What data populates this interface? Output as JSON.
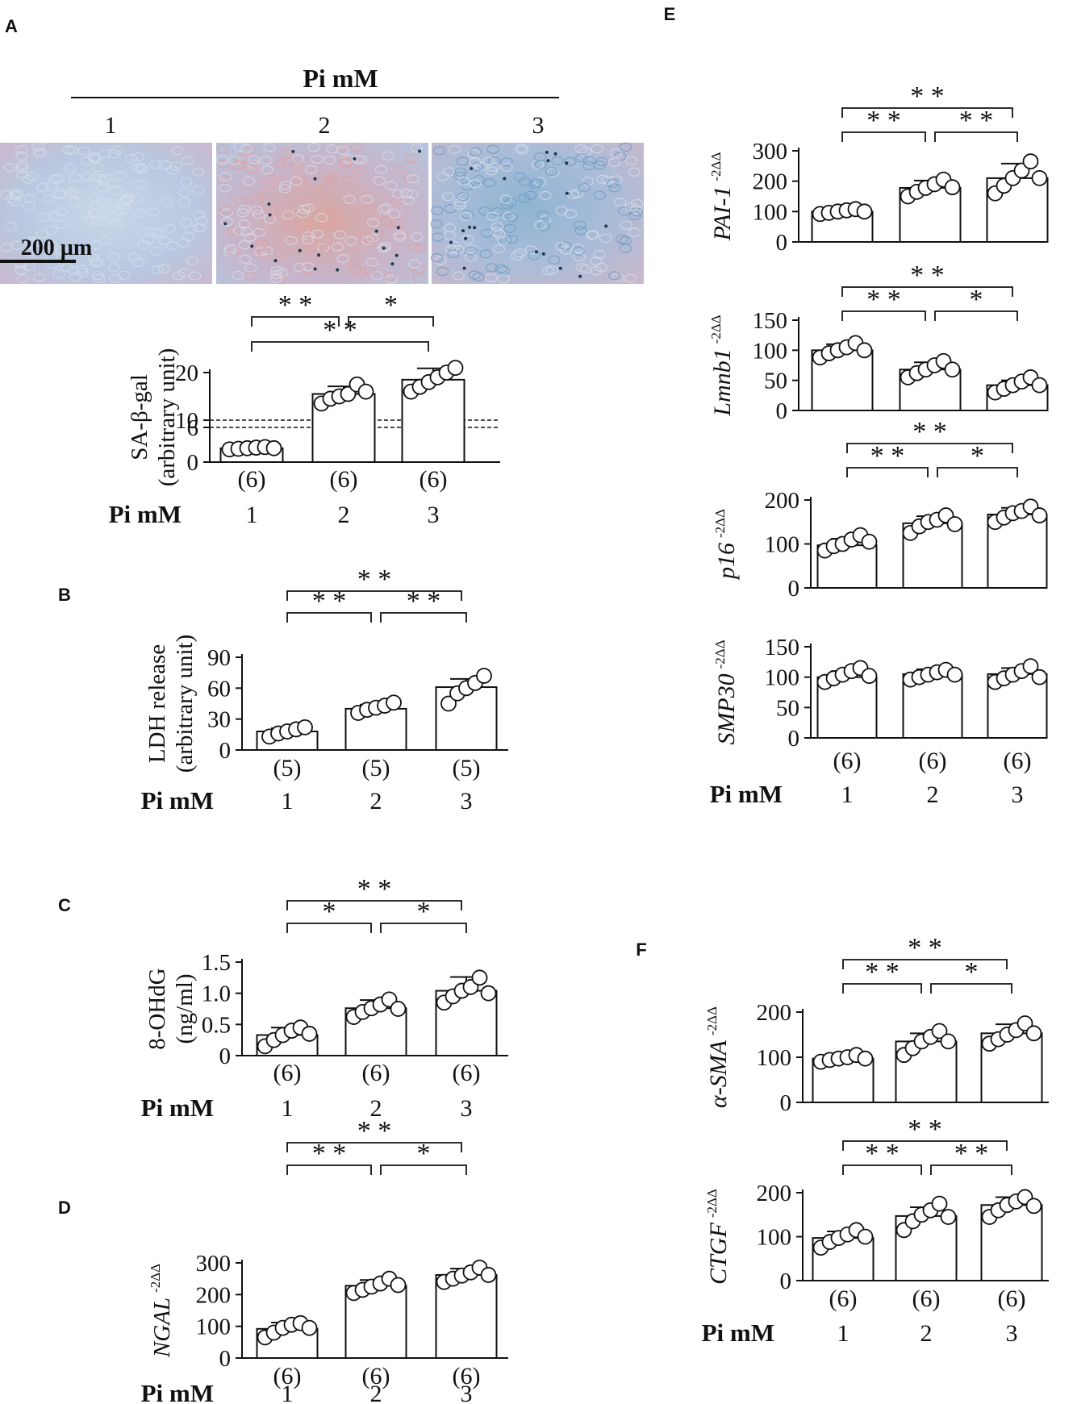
{
  "panel_letters": [
    "A",
    "B",
    "C",
    "D",
    "E",
    "F"
  ],
  "micrograph": {
    "header": "Pi mM",
    "columns": [
      "1",
      "2",
      "3"
    ],
    "scale_bar_label": "200 µm"
  },
  "group_label": "Pi  mM",
  "chart_data": [
    {
      "id": "A",
      "type": "bar",
      "categories": [
        "1",
        "2",
        "3"
      ],
      "values": [
        2.4,
        15.5,
        18.5
      ],
      "errors": [
        0.5,
        1.6,
        2.4
      ],
      "points": [
        [
          2.2,
          2.3,
          2.4,
          2.5,
          2.6,
          2.4
        ],
        [
          13.5,
          14.5,
          15,
          15.5,
          17.5,
          16
        ],
        [
          16,
          17,
          18,
          19,
          20,
          21
        ]
      ],
      "n_labels": [
        "(6)",
        "(6)",
        "(6)"
      ],
      "ylabel_lines": [
        "SA-β-gal",
        "(arbitrary unit)"
      ],
      "ylabel_italic": false,
      "yticks": [
        "0",
        "6",
        "10",
        "20"
      ],
      "axis_break": [
        6,
        10
      ],
      "ylim": [
        0,
        20
      ],
      "significance": [
        {
          "from": 0,
          "to": 1,
          "label": "**"
        },
        {
          "from": 1,
          "to": 2,
          "label": "*"
        },
        {
          "from": 0,
          "to": 2,
          "label": "**"
        }
      ]
    },
    {
      "id": "B",
      "type": "bar",
      "categories": [
        "1",
        "2",
        "3"
      ],
      "values": [
        18,
        40,
        61
      ],
      "errors": [
        3,
        4,
        8
      ],
      "points": [
        [
          13,
          16,
          18,
          20,
          22
        ],
        [
          36,
          39,
          41,
          43,
          46
        ],
        [
          45,
          55,
          60,
          65,
          72
        ]
      ],
      "n_labels": [
        "(5)",
        "(5)",
        "(5)"
      ],
      "ylabel_lines": [
        "LDH release",
        "(arbitrary unit)"
      ],
      "ylabel_italic": false,
      "yticks": [
        "0",
        "30",
        "60",
        "90"
      ],
      "ylim": [
        0,
        90
      ],
      "significance": [
        {
          "from": 0,
          "to": 1,
          "label": "**"
        },
        {
          "from": 1,
          "to": 2,
          "label": "**"
        },
        {
          "from": 0,
          "to": 2,
          "label": "**"
        }
      ]
    },
    {
      "id": "C",
      "type": "bar",
      "categories": [
        "1",
        "2",
        "3"
      ],
      "values": [
        0.33,
        0.76,
        1.04
      ],
      "errors": [
        0.12,
        0.13,
        0.22
      ],
      "points": [
        [
          0.15,
          0.25,
          0.33,
          0.4,
          0.45,
          0.35
        ],
        [
          0.62,
          0.7,
          0.76,
          0.82,
          0.9,
          0.75
        ],
        [
          0.85,
          0.95,
          1.04,
          1.1,
          1.25,
          1.0
        ]
      ],
      "n_labels": [
        "(6)",
        "(6)",
        "(6)"
      ],
      "ylabel_lines": [
        "8-OHdG",
        "(ng/ml)"
      ],
      "ylabel_italic": false,
      "yticks": [
        "0",
        "0.5",
        "1.0",
        "1.5"
      ],
      "ylim": [
        0,
        1.5
      ],
      "significance": [
        {
          "from": 0,
          "to": 1,
          "label": "*"
        },
        {
          "from": 1,
          "to": 2,
          "label": "*"
        },
        {
          "from": 0,
          "to": 2,
          "label": "**"
        }
      ]
    },
    {
      "id": "D",
      "type": "bar",
      "categories": [
        "1",
        "2",
        "3"
      ],
      "values": [
        92,
        228,
        262
      ],
      "errors": [
        20,
        18,
        20
      ],
      "points": [
        [
          65,
          80,
          95,
          105,
          110,
          95
        ],
        [
          205,
          215,
          225,
          235,
          250,
          230
        ],
        [
          240,
          250,
          260,
          270,
          285,
          262
        ]
      ],
      "n_labels": [
        "(6)",
        "(6)",
        "(6)"
      ],
      "ylabel_lines": [
        "NGAL"
      ],
      "ylabel_sup": "-2ΔΔ",
      "ylabel_italic": true,
      "yticks": [
        "0",
        "100",
        "200",
        "300"
      ],
      "ylim": [
        0,
        300
      ],
      "significance": [
        {
          "from": 0,
          "to": 1,
          "label": "**"
        },
        {
          "from": 1,
          "to": 2,
          "label": "*"
        },
        {
          "from": 0,
          "to": 2,
          "label": "**"
        }
      ]
    },
    {
      "id": "E1",
      "type": "bar",
      "categories": [
        "1",
        "2",
        "3"
      ],
      "values": [
        100,
        178,
        210
      ],
      "errors": [
        8,
        24,
        48
      ],
      "points": [
        [
          92,
          96,
          100,
          104,
          108,
          100
        ],
        [
          150,
          165,
          178,
          190,
          205,
          180
        ],
        [
          160,
          185,
          210,
          235,
          265,
          210
        ]
      ],
      "n_labels": [],
      "ylabel_lines": [
        "PAI-1"
      ],
      "ylabel_sup": "-2ΔΔ",
      "ylabel_italic": true,
      "yticks": [
        "0",
        "100",
        "200",
        "300"
      ],
      "ylim": [
        0,
        300
      ],
      "significance": [
        {
          "from": 0,
          "to": 1,
          "label": "**"
        },
        {
          "from": 1,
          "to": 2,
          "label": "**"
        },
        {
          "from": 0,
          "to": 2,
          "label": "**"
        }
      ]
    },
    {
      "id": "E2",
      "type": "bar",
      "categories": [
        "1",
        "2",
        "3"
      ],
      "values": [
        100,
        68,
        42
      ],
      "errors": [
        10,
        12,
        8
      ],
      "points": [
        [
          88,
          95,
          100,
          105,
          112,
          100
        ],
        [
          55,
          62,
          68,
          75,
          82,
          68
        ],
        [
          30,
          36,
          42,
          48,
          55,
          42
        ]
      ],
      "n_labels": [],
      "ylabel_lines": [
        "Lmnb1"
      ],
      "ylabel_sup": "-2ΔΔ",
      "ylabel_italic": true,
      "yticks": [
        "0",
        "50",
        "100",
        "150"
      ],
      "ylim": [
        0,
        150
      ],
      "significance": [
        {
          "from": 0,
          "to": 1,
          "label": "**"
        },
        {
          "from": 1,
          "to": 2,
          "label": "*"
        },
        {
          "from": 0,
          "to": 2,
          "label": "**"
        }
      ]
    },
    {
      "id": "E3",
      "type": "bar",
      "categories": [
        "1",
        "2",
        "3"
      ],
      "values": [
        97,
        147,
        167
      ],
      "errors": [
        15,
        16,
        15
      ],
      "points": [
        [
          85,
          95,
          100,
          110,
          120,
          105
        ],
        [
          125,
          140,
          150,
          155,
          165,
          145
        ],
        [
          150,
          160,
          170,
          175,
          185,
          165
        ]
      ],
      "n_labels": [
        "(6)",
        "(6)",
        "(6)"
      ],
      "ylabel_lines": [
        "p16"
      ],
      "ylabel_sup": "-2ΔΔ",
      "ylabel_italic": true,
      "yticks": [
        "0",
        "100",
        "200"
      ],
      "ylim": [
        0,
        200
      ],
      "significance": [
        {
          "from": 0,
          "to": 1,
          "label": "**"
        },
        {
          "from": 1,
          "to": 2,
          "label": "*"
        },
        {
          "from": 0,
          "to": 2,
          "label": "**"
        }
      ]
    },
    {
      "id": "E4",
      "type": "bar",
      "categories": [
        "1",
        "2",
        "3"
      ],
      "values": [
        100,
        105,
        105
      ],
      "errors": [
        10,
        8,
        10
      ],
      "points": [
        [
          92,
          98,
          104,
          110,
          115,
          102
        ],
        [
          96,
          100,
          104,
          108,
          112,
          104
        ],
        [
          92,
          98,
          104,
          110,
          118,
          100
        ]
      ],
      "n_labels": [
        "(6)",
        "(6)",
        "(6)"
      ],
      "ylabel_lines": [
        "SMP30"
      ],
      "ylabel_sup": "-2ΔΔ",
      "ylabel_italic": true,
      "yticks": [
        "0",
        "50",
        "100",
        "150"
      ],
      "ylim": [
        0,
        150
      ],
      "significance": []
    },
    {
      "id": "F1",
      "type": "bar",
      "categories": [
        "1",
        "2",
        "3"
      ],
      "values": [
        97,
        135,
        153
      ],
      "errors": [
        8,
        18,
        20
      ],
      "points": [
        [
          90,
          94,
          97,
          100,
          105,
          97
        ],
        [
          105,
          120,
          135,
          145,
          158,
          135
        ],
        [
          130,
          140,
          150,
          160,
          175,
          153
        ]
      ],
      "n_labels": [],
      "ylabel_lines": [
        "α-SMA"
      ],
      "ylabel_sup": "-2ΔΔ",
      "ylabel_italic": true,
      "yticks": [
        "0",
        "100",
        "200"
      ],
      "ylim": [
        0,
        200
      ],
      "significance": [
        {
          "from": 0,
          "to": 1,
          "label": "**"
        },
        {
          "from": 1,
          "to": 2,
          "label": "*"
        },
        {
          "from": 0,
          "to": 2,
          "label": "**"
        }
      ]
    },
    {
      "id": "F2",
      "type": "bar",
      "categories": [
        "1",
        "2",
        "3"
      ],
      "values": [
        97,
        147,
        172
      ],
      "errors": [
        15,
        20,
        18
      ],
      "points": [
        [
          75,
          88,
          97,
          105,
          115,
          100
        ],
        [
          115,
          135,
          150,
          160,
          175,
          145
        ],
        [
          145,
          160,
          172,
          180,
          190,
          170
        ]
      ],
      "n_labels": [
        "(6)",
        "(6)",
        "(6)"
      ],
      "ylabel_lines": [
        "CTGF"
      ],
      "ylabel_sup": "-2ΔΔ",
      "ylabel_italic": true,
      "yticks": [
        "0",
        "100",
        "200"
      ],
      "ylim": [
        0,
        200
      ],
      "significance": [
        {
          "from": 0,
          "to": 1,
          "label": "**"
        },
        {
          "from": 1,
          "to": 2,
          "label": "**"
        },
        {
          "from": 0,
          "to": 2,
          "label": "**"
        }
      ]
    }
  ]
}
